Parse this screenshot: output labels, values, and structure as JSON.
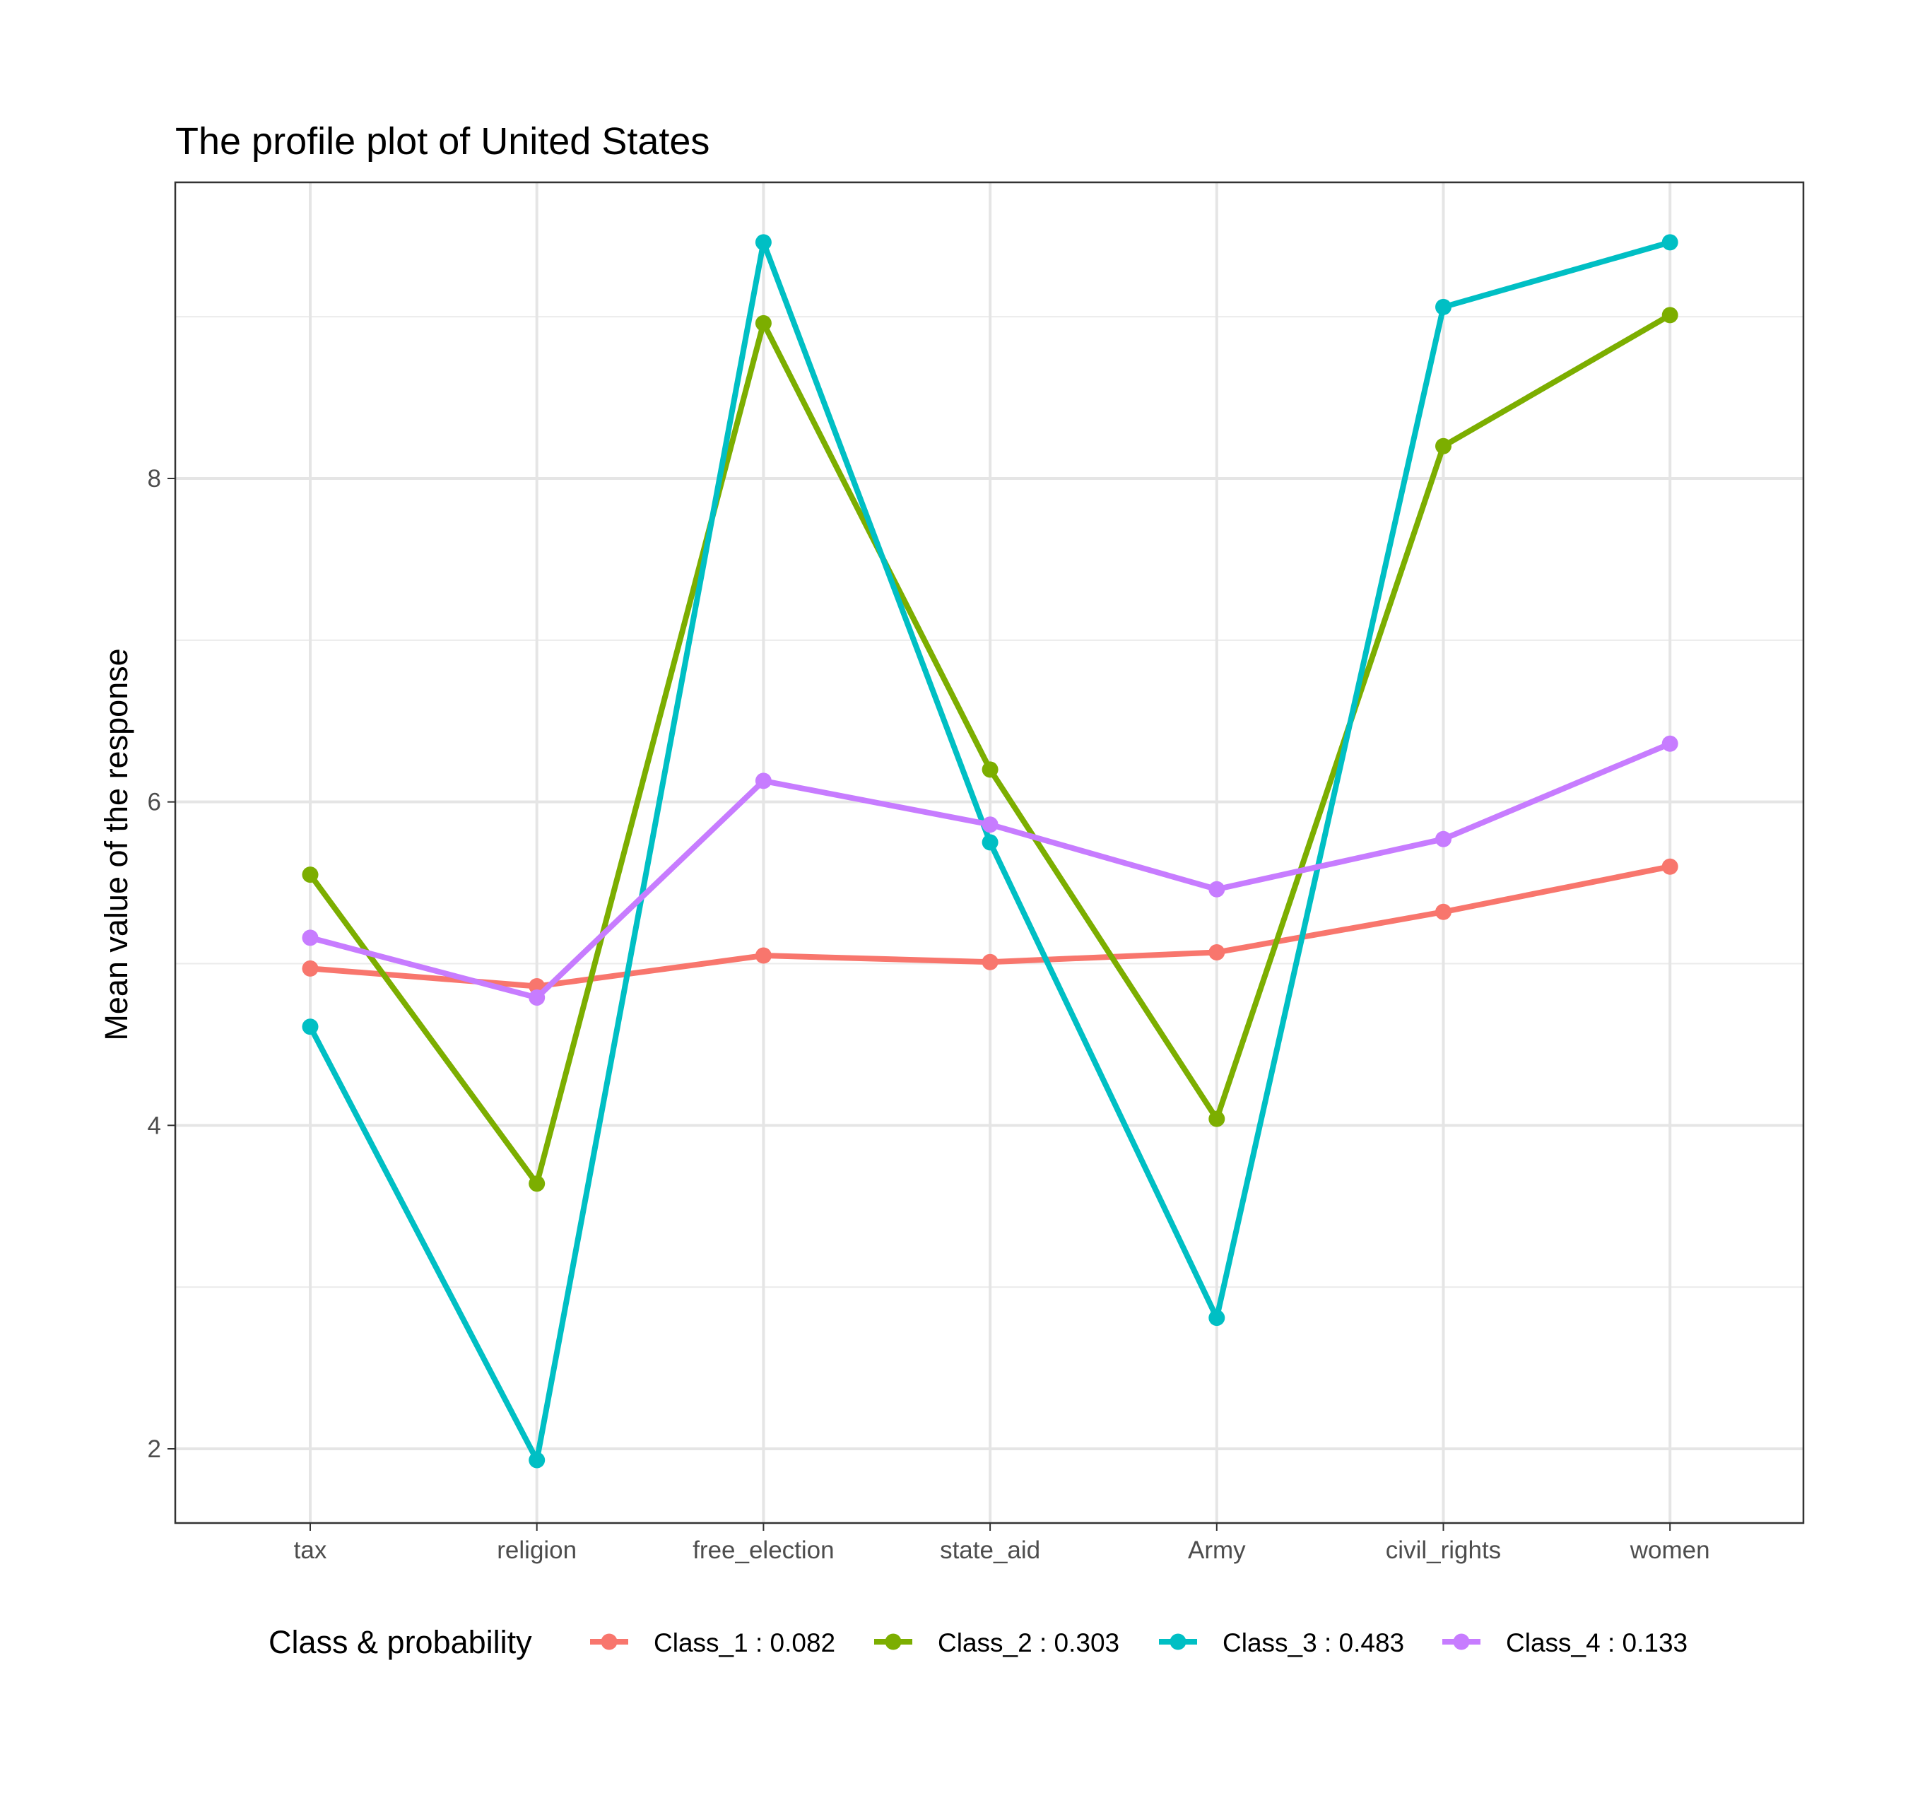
{
  "chart_data": {
    "type": "line",
    "title": "The profile plot of United States",
    "xlabel": "",
    "ylabel": "Mean value of the response",
    "categories": [
      "tax",
      "religion",
      "free_election",
      "state_aid",
      "Army",
      "civil_rights",
      "women"
    ],
    "yticks": [
      2,
      4,
      6,
      8
    ],
    "ylim": [
      1.5,
      9.55
    ],
    "grid": true,
    "legend": {
      "title": "Class & probability",
      "position": "bottom"
    },
    "series": [
      {
        "name": "Class_1 : 0.082",
        "color": "#F8766D",
        "values": [
          4.97,
          4.86,
          5.05,
          5.01,
          5.07,
          5.32,
          5.6
        ]
      },
      {
        "name": "Class_2 : 0.303",
        "color": "#7CAE00",
        "values": [
          5.55,
          3.64,
          8.96,
          6.2,
          4.04,
          8.2,
          9.01
        ]
      },
      {
        "name": "Class_3 : 0.483",
        "color": "#00BFC4",
        "values": [
          4.61,
          1.93,
          9.46,
          5.75,
          2.81,
          9.06,
          9.46
        ]
      },
      {
        "name": "Class_4 : 0.133",
        "color": "#C77CFF",
        "values": [
          5.16,
          4.79,
          6.13,
          5.86,
          5.46,
          5.77,
          6.36
        ]
      }
    ]
  }
}
